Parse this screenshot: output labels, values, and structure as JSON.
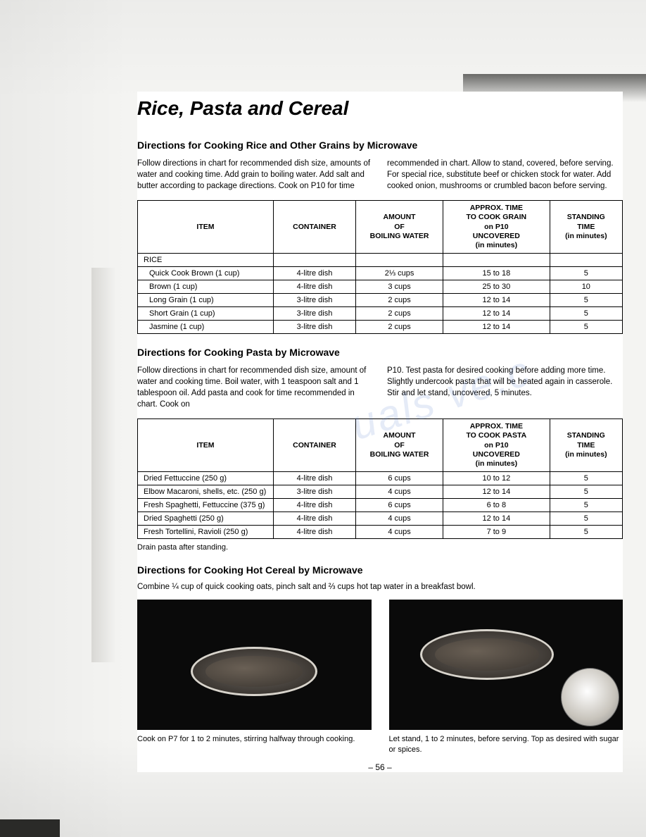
{
  "main_title": "Rice, Pasta and Cereal",
  "section1": {
    "heading": "Directions for Cooking Rice and Other Grains by Microwave",
    "col1": "Follow directions in chart for recommended dish size, amounts of water and cooking time. Add grain to boiling water. Add salt and butter according to package directions. Cook on P10 for time",
    "col2": "recommended in chart. Allow to stand, covered, before serving. For special rice, substitute beef or chicken stock for water. Add cooked onion, mushrooms or crumbled bacon before serving."
  },
  "table1": {
    "headers": [
      "ITEM",
      "CONTAINER",
      "AMOUNT\nOF\nBOILING WATER",
      "APPROX. TIME\nTO COOK GRAIN\non P10\nUNCOVERED\n(in minutes)",
      "STANDING\nTIME\n(in minutes)"
    ],
    "category": "RICE",
    "rows": [
      [
        "Quick Cook Brown (1 cup)",
        "4-litre dish",
        "2⅓ cups",
        "15 to 18",
        "5"
      ],
      [
        "Brown (1 cup)",
        "4-litre dish",
        "3 cups",
        "25 to 30",
        "10"
      ],
      [
        "Long Grain (1 cup)",
        "3-litre dish",
        "2 cups",
        "12 to 14",
        "5"
      ],
      [
        "Short Grain (1 cup)",
        "3-litre dish",
        "2 cups",
        "12 to 14",
        "5"
      ],
      [
        "Jasmine (1 cup)",
        "3-litre dish",
        "2 cups",
        "12 to 14",
        "5"
      ]
    ]
  },
  "section2": {
    "heading": "Directions for Cooking Pasta by Microwave",
    "col1": "Follow directions in chart for recommended dish size, amount of water and cooking time. Boil water, with 1 teaspoon salt and 1 tablespoon oil. Add pasta and cook for time recommended in chart. Cook on",
    "col2": "P10. Test pasta for desired cooking before adding more time. Slightly undercook pasta that will be heated again in casserole. Stir and let stand, uncovered, 5 minutes."
  },
  "table2": {
    "headers": [
      "ITEM",
      "CONTAINER",
      "AMOUNT\nOF\nBOILING WATER",
      "APPROX. TIME\nTO COOK PASTA\non P10\nUNCOVERED\n(in minutes)",
      "STANDING\nTIME\n(in minutes)"
    ],
    "rows": [
      [
        "Dried Fettuccine (250 g)",
        "4-litre dish",
        "6 cups",
        "10 to 12",
        "5"
      ],
      [
        "Elbow Macaroni, shells, etc. (250 g)",
        "3-litre dish",
        "4 cups",
        "12 to 14",
        "5"
      ],
      [
        "Fresh Spaghetti, Fettuccine (375 g)",
        "4-litre dish",
        "6 cups",
        "6 to 8",
        "5"
      ],
      [
        "Dried Spaghetti (250 g)",
        "4-litre dish",
        "4 cups",
        "12 to 14",
        "5"
      ],
      [
        "Fresh Tortellini, Ravioli (250 g)",
        "4-litre dish",
        "4 cups",
        "7 to 9",
        "5"
      ]
    ]
  },
  "footnote2": "Drain pasta after standing.",
  "section3": {
    "heading": "Directions for Cooking Hot Cereal by Microwave",
    "text": "Combine ¼ cup of quick cooking oats, pinch salt and ⅔ cups hot tap water in a breakfast bowl."
  },
  "captions": {
    "left": "Cook on P7 for 1 to 2 minutes, stirring halfway through cooking.",
    "right": "Let stand, 1 to 2 minutes, before serving. Top as desired with sugar or spices."
  },
  "page_num": "– 56 –",
  "col_widths": [
    "28%",
    "17%",
    "18%",
    "22%",
    "15%"
  ]
}
